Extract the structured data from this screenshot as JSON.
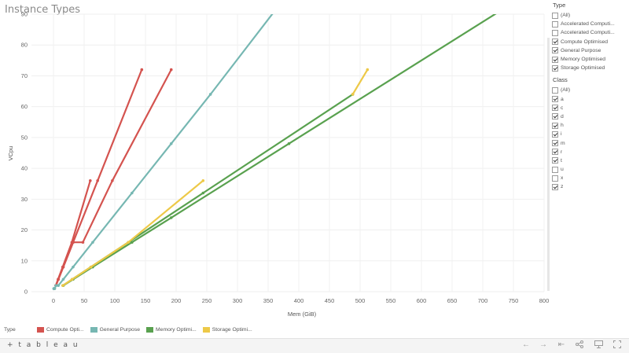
{
  "title": "Instance Types",
  "chart_data": {
    "type": "line",
    "xlabel": "Mem (GiB)",
    "ylabel": "VCpu",
    "xlim": [
      0,
      800
    ],
    "ylim": [
      0,
      90
    ],
    "xticks": [
      0,
      50,
      100,
      150,
      200,
      250,
      300,
      350,
      400,
      450,
      500,
      550,
      600,
      650,
      700,
      750,
      800
    ],
    "yticks": [
      0,
      10,
      20,
      30,
      40,
      50,
      60,
      70,
      80,
      90
    ],
    "grid": true,
    "legend_position": "bottom",
    "series": [
      {
        "name": "Compute Optimised",
        "color": "#d4534f",
        "points": [
          [
            3.75,
            2
          ],
          [
            7.5,
            4
          ],
          [
            15,
            8
          ],
          [
            30,
            16
          ],
          [
            60,
            36
          ]
        ]
      },
      {
        "name": "Compute Optimised",
        "color": "#d4534f",
        "points": [
          [
            4,
            2
          ],
          [
            8,
            4
          ],
          [
            16,
            8
          ],
          [
            32,
            16
          ],
          [
            72,
            36
          ],
          [
            144,
            72
          ]
        ]
      },
      {
        "name": "Compute Optimised",
        "color": "#d4534f",
        "points": [
          [
            4,
            2
          ],
          [
            8,
            4
          ],
          [
            16,
            8
          ],
          [
            32,
            16
          ],
          [
            48,
            16
          ],
          [
            96,
            36
          ],
          [
            192,
            72
          ]
        ]
      },
      {
        "name": "General Purpose",
        "color": "#76b7b2",
        "points": [
          [
            0.5,
            1
          ],
          [
            1,
            1
          ],
          [
            2,
            1
          ],
          [
            4,
            2
          ],
          [
            8,
            2
          ],
          [
            16,
            4
          ],
          [
            32,
            8
          ],
          [
            64,
            16
          ],
          [
            128,
            32
          ],
          [
            192,
            48
          ],
          [
            256,
            64
          ],
          [
            376,
            95
          ]
        ]
      },
      {
        "name": "Memory Optimised",
        "color": "#59a14f",
        "points": [
          [
            15.25,
            2
          ],
          [
            30.5,
            4
          ],
          [
            61,
            8
          ],
          [
            122,
            16
          ],
          [
            244,
            32
          ],
          [
            488,
            64
          ]
        ]
      },
      {
        "name": "Memory Optimised",
        "color": "#59a14f",
        "points": [
          [
            16,
            2
          ],
          [
            32,
            4
          ],
          [
            64,
            8
          ],
          [
            128,
            16
          ],
          [
            192,
            24
          ],
          [
            384,
            48
          ],
          [
            768,
            96
          ]
        ]
      },
      {
        "name": "Storage Optimised",
        "color": "#edc948",
        "points": [
          [
            15.25,
            2
          ],
          [
            30.5,
            4
          ],
          [
            61,
            8
          ],
          [
            122,
            16
          ],
          [
            244,
            36
          ]
        ]
      },
      {
        "name": "Storage Optimised",
        "color": "#edc948",
        "points": [
          [
            488,
            64
          ],
          [
            512,
            72
          ]
        ]
      }
    ]
  },
  "filters": {
    "type": {
      "title": "Type",
      "options": [
        {
          "label": "(All)",
          "checked": false
        },
        {
          "label": "Accelerated Computi...",
          "checked": false
        },
        {
          "label": "Accelerated Computi...",
          "checked": false
        },
        {
          "label": "Compute Optimised",
          "checked": true
        },
        {
          "label": "General Purpose",
          "checked": true
        },
        {
          "label": "Memory Optimised",
          "checked": true
        },
        {
          "label": "Storage Optimised",
          "checked": true
        }
      ]
    },
    "class": {
      "title": "Class",
      "options": [
        {
          "label": "(All)",
          "checked": false
        },
        {
          "label": "a",
          "checked": true
        },
        {
          "label": "c",
          "checked": true
        },
        {
          "label": "d",
          "checked": true
        },
        {
          "label": "h",
          "checked": true
        },
        {
          "label": "i",
          "checked": true
        },
        {
          "label": "m",
          "checked": true
        },
        {
          "label": "r",
          "checked": true
        },
        {
          "label": "t",
          "checked": true
        },
        {
          "label": "u",
          "checked": false
        },
        {
          "label": "x",
          "checked": false
        },
        {
          "label": "z",
          "checked": true
        }
      ]
    }
  },
  "legend": {
    "title": "Type",
    "items": [
      {
        "label": "Compute Opti...",
        "color": "#d4534f"
      },
      {
        "label": "General Purpose",
        "color": "#76b7b2"
      },
      {
        "label": "Memory Optimi...",
        "color": "#59a14f"
      },
      {
        "label": "Storage Optimi...",
        "color": "#edc948"
      }
    ]
  },
  "footer": {
    "logo": "+ t a b l e a u",
    "icons": [
      "undo-icon",
      "redo-icon",
      "revert-icon",
      "share-icon",
      "present-icon",
      "fullscreen-icon"
    ]
  }
}
